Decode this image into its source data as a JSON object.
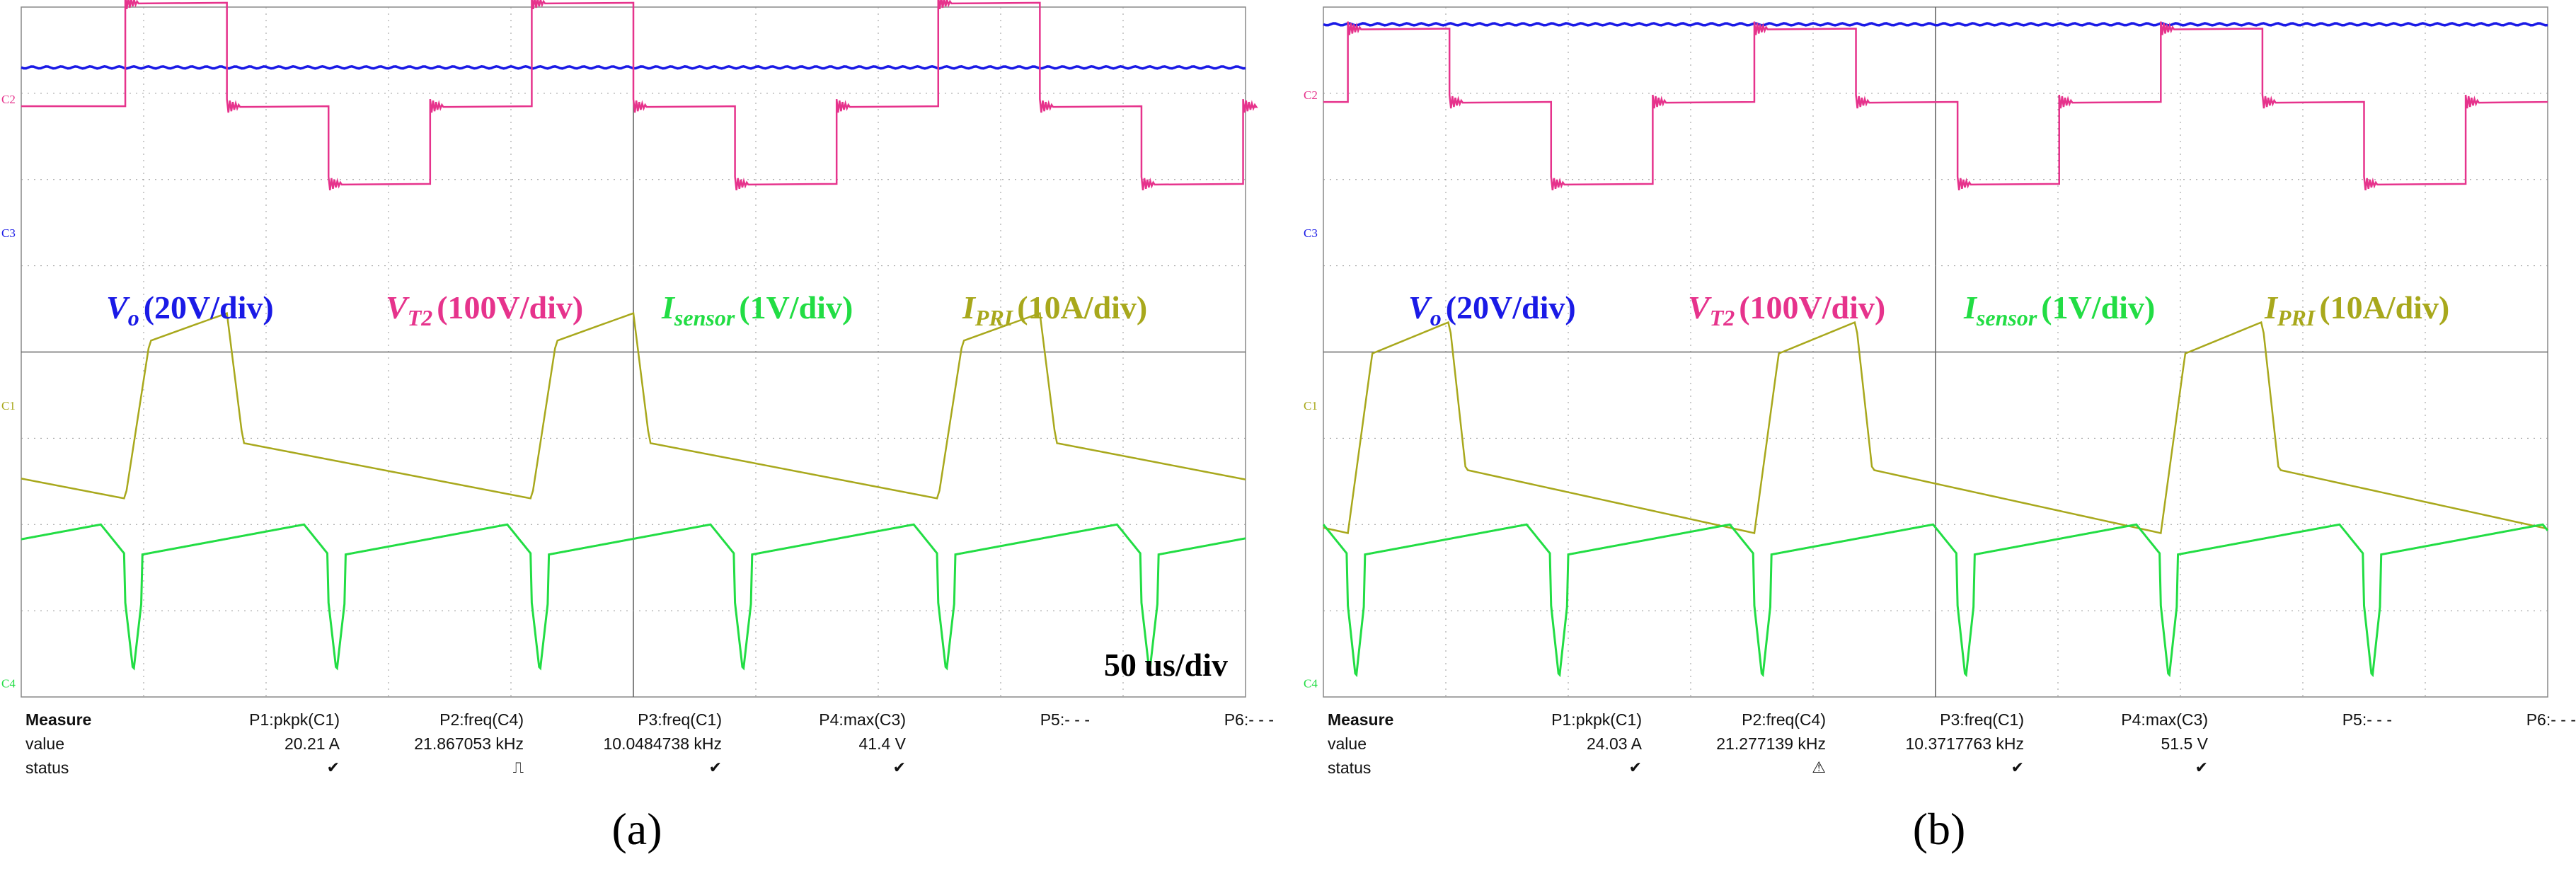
{
  "figure": {
    "panels": [
      {
        "caption": "(a)",
        "legend": [
          {
            "main": "V",
            "sub": "o",
            "unit": "(20V/div)",
            "color": "#1a1ae6"
          },
          {
            "main": "V",
            "sub": "T2",
            "unit": "(100V/div)",
            "color": "#e6338c"
          },
          {
            "main": "I",
            "sub": "sensor",
            "unit": "(1V/div)",
            "color": "#22dd44"
          },
          {
            "main": "I",
            "sub": "PRI",
            "unit": "(10A/div)",
            "color": "#a8a81c"
          }
        ],
        "timebase": "50 us/div",
        "channel_markers": [
          "C2",
          "C3",
          "C1",
          "C4"
        ],
        "measure": {
          "header": "Measure",
          "row_value_label": "value",
          "row_status_label": "status",
          "columns": [
            {
              "name": "P1:pkpk(C1)",
              "value": "20.21 A",
              "status": "check"
            },
            {
              "name": "P2:freq(C4)",
              "value": "21.867053 kHz",
              "status": "pulse"
            },
            {
              "name": "P3:freq(C1)",
              "value": "10.0484738 kHz",
              "status": "check"
            },
            {
              "name": "P4:max(C3)",
              "value": "41.4 V",
              "status": "check"
            },
            {
              "name": "P5:- - -",
              "value": "",
              "status": ""
            },
            {
              "name": "P6:- - -",
              "value": "",
              "status": ""
            }
          ]
        }
      },
      {
        "caption": "(b)",
        "legend": [
          {
            "main": "V",
            "sub": "o",
            "unit": "(20V/div)",
            "color": "#1a1ae6"
          },
          {
            "main": "V",
            "sub": "T2",
            "unit": "(100V/div)",
            "color": "#e6338c"
          },
          {
            "main": "I",
            "sub": "sensor",
            "unit": "(1V/div)",
            "color": "#22dd44"
          },
          {
            "main": "I",
            "sub": "PRI",
            "unit": "(10A/div)",
            "color": "#a8a81c"
          }
        ],
        "timebase": "",
        "channel_markers": [
          "C2",
          "C3",
          "C1",
          "C4"
        ],
        "measure": {
          "header": "Measure",
          "row_value_label": "value",
          "row_status_label": "status",
          "columns": [
            {
              "name": "P1:pkpk(C1)",
              "value": "24.03 A",
              "status": "check"
            },
            {
              "name": "P2:freq(C4)",
              "value": "21.277139 kHz",
              "status": "warn"
            },
            {
              "name": "P3:freq(C1)",
              "value": "10.3717763 kHz",
              "status": "check"
            },
            {
              "name": "P4:max(C3)",
              "value": "51.5 V",
              "status": "check"
            },
            {
              "name": "P5:- - -",
              "value": "",
              "status": ""
            },
            {
              "name": "P6:- - -",
              "value": "",
              "status": ""
            }
          ]
        }
      }
    ]
  },
  "chart_data": [
    {
      "type": "line",
      "title": "",
      "x_range": [
        0,
        10
      ],
      "y_range": [
        0,
        8
      ],
      "period_div": [
        3.32,
        3.32
      ],
      "series": [
        {
          "name": "Vo (20V/div)",
          "color": "#1a1ae6",
          "level_div": 7.3
        },
        {
          "name": "VT2 (100V/div)",
          "color": "#e6338c",
          "levels_div": [
            8.05,
            6.85,
            5.95
          ],
          "first_edge_div": 0.85
        },
        {
          "name": "Isensor (1V/div)",
          "color": "#22dd44",
          "min_div": 0.28,
          "max_div": 2.0
        },
        {
          "name": "IPRI (10A/div)",
          "color": "#a8a81c",
          "min_div": 2.3,
          "max_div": 4.45
        }
      ]
    },
    {
      "type": "line",
      "title": "",
      "x_range": [
        0,
        10
      ],
      "y_range": [
        0,
        8
      ],
      "period_div": [
        3.32,
        3.32
      ],
      "series": [
        {
          "name": "Vo (20V/div)",
          "color": "#1a1ae6",
          "level_div": 7.8
        },
        {
          "name": "VT2 (100V/div)",
          "color": "#e6338c",
          "levels_div": [
            7.75,
            6.9,
            5.95
          ],
          "first_edge_div": 0.2
        },
        {
          "name": "Isensor (1V/div)",
          "color": "#22dd44",
          "min_div": 0.2,
          "max_div": 2.0
        },
        {
          "name": "IPRI (10A/div)",
          "color": "#a8a81c",
          "min_div": 1.9,
          "max_div": 4.35
        }
      ]
    }
  ]
}
